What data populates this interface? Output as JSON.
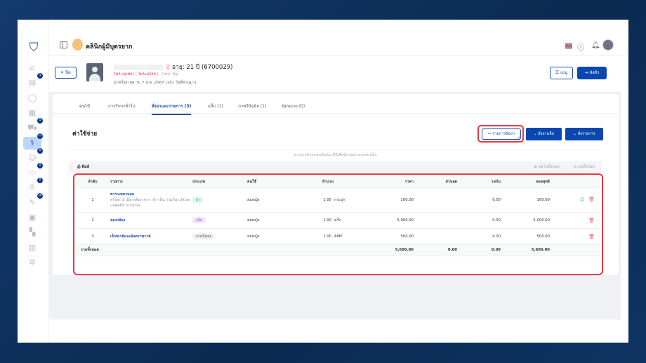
{
  "app": {
    "clinic_name": "คลินิกผู้มีบุตรยาก"
  },
  "sidebar": {
    "items": [
      {
        "icon": "home-icon",
        "badge": null
      },
      {
        "icon": "clipboard-icon",
        "badge": "1"
      },
      {
        "icon": "user-icon",
        "badge": null
      },
      {
        "icon": "calendar-icon",
        "badge": null
      },
      {
        "icon": "ambulance-icon",
        "badge": "0"
      },
      {
        "icon": "stethoscope-icon",
        "badge": "11",
        "active": true
      },
      {
        "icon": "doctor-icon",
        "badge": "0"
      },
      {
        "icon": "pills-icon",
        "badge": "0"
      },
      {
        "icon": "hand-icon",
        "badge": "0"
      },
      {
        "icon": "syringe-icon",
        "badge": "16"
      },
      {
        "icon": "box-icon",
        "badge": null
      },
      {
        "icon": "grid-icon",
        "badge": null
      },
      {
        "icon": "chart-icon",
        "badge": null
      },
      {
        "icon": "gear-icon",
        "badge": null
      }
    ]
  },
  "patient": {
    "close_label": "ปิด",
    "age_text": "อายุ: 21 ปี (6700029)",
    "allergy": "ไม่ระบุแพ้ยา",
    "disease": "ไม่ระบุโรค",
    "body": "- Cm/- Kg",
    "last_visit": "มาครั้งล่าสุด: พ. 7 ส.ค. 2567 (181 วันที่ผ่านมา)",
    "menu_label": "เมนู",
    "send_label": "ส่งตัว"
  },
  "tabs": [
    "คนไข้",
    "การรักษาทั่วไป",
    "สั่งยาและรายการ (3)",
    "แล็บ (1)",
    "ภาพวินิจฉัย (1)",
    "นัดหมาย (0)"
  ],
  "section": {
    "title": "ค่าใช้จ่าย",
    "items_button": "รายการจัดยา",
    "order_lab": "สั่งยาแล็บ",
    "order_items": "สั่งรายการ",
    "drop_hint": "ลากส่วนหัวของคอลัมน์มาที่นี่เพื่อจัดกลุ่มตามคอลัมน์นั้น",
    "print": "พิมพ์",
    "expand_all": "ขยายทั้งหมด",
    "collapse_all": "ย่อทั้งหมด"
  },
  "table": {
    "headers": [
      "ลำดับ",
      "รายการ",
      "ประเภท",
      "คนใช้",
      "จำนวน",
      "ราคา",
      "ส่วนลด",
      "วงเงิน",
      "ยอดสุทธิ"
    ],
    "rows": [
      {
        "no": "1",
        "name": "พาราเซตามอล",
        "desc": "ครั้งละ 1 เม็ด หลังอาหาร เช้า-เย็น ร่วมกัน แก้ปวด แอพฉมีอาการปวด",
        "type": "ยา",
        "user": "สมหญิง",
        "qty": "1.00",
        "unit": "กระปุก",
        "price": "100.00",
        "discount": "",
        "limit": "0.00",
        "net": "100.00",
        "printable": true
      },
      {
        "no": "2",
        "name": "ส่องกล้อง",
        "desc": "",
        "type": "แล็บ",
        "user": "สมหญิง",
        "qty": "1.00",
        "unit": "ครั้ง",
        "price": "5,000.00",
        "discount": "",
        "limit": "0.00",
        "net": "5,000.00",
        "printable": false
      },
      {
        "no": "3",
        "name": "เอ็กซเรย์และอัลตราซาวด์",
        "desc": "",
        "type": "ภาพวินิจฉัย",
        "user": "สมหญิง",
        "qty": "1.00",
        "unit": "AMP",
        "price": "500.00",
        "discount": "",
        "limit": "0.00",
        "net": "500.00",
        "printable": false
      }
    ],
    "total": {
      "label": "รวมทั้งหมด",
      "price": "5,600.00",
      "discount": "0.00",
      "limit": "0.00",
      "net": "5,600.00"
    }
  },
  "colors": {
    "primary": "#0b47b0",
    "highlight": "#e53945",
    "pill_drug": "#d9f5ee",
    "pill_lab": "#f1e3fb",
    "pill_img": "#eef0f4"
  }
}
